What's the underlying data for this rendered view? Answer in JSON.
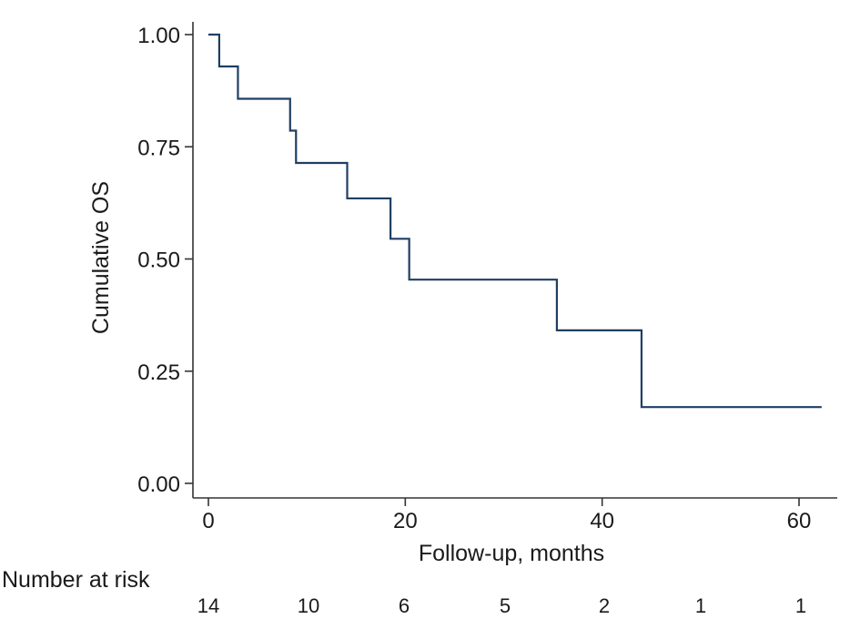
{
  "chart_data": {
    "type": "line",
    "subtype": "kaplan-meier-step",
    "title": "",
    "xlabel": "Follow-up, months",
    "ylabel": "Cumulative OS",
    "xlim": [
      0,
      63
    ],
    "ylim": [
      0,
      1
    ],
    "x_ticks": [
      0,
      20,
      40,
      60
    ],
    "y_ticks": [
      0,
      0.25,
      0.5,
      0.75,
      1.0
    ],
    "x_tick_labels": [
      "0",
      "20",
      "40",
      "60"
    ],
    "y_tick_labels": [
      "0.00",
      "0.25",
      "0.50",
      "0.75",
      "1.00"
    ],
    "grid": false,
    "legend": "none",
    "series": [
      {
        "color": "#1f3f63",
        "points": [
          [
            0,
            1.0
          ],
          [
            1.1,
            0.929
          ],
          [
            3.0,
            0.857
          ],
          [
            8.3,
            0.786
          ],
          [
            8.9,
            0.714
          ],
          [
            14.1,
            0.635
          ],
          [
            18.5,
            0.545
          ],
          [
            20.4,
            0.454
          ],
          [
            35.4,
            0.341
          ],
          [
            44.0,
            0.17
          ],
          [
            62.3,
            0.17
          ]
        ]
      }
    ],
    "risk_table": {
      "heading": "Number at risk",
      "counts": [
        "14",
        "10",
        "6",
        "5",
        "2",
        "1",
        "1"
      ]
    }
  }
}
